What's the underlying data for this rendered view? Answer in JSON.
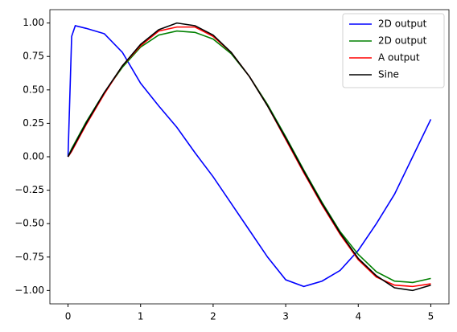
{
  "chart_data": {
    "type": "line",
    "x": [
      0,
      0.05,
      0.1,
      0.25,
      0.5,
      0.75,
      1,
      1.25,
      1.5,
      1.75,
      2,
      2.25,
      2.5,
      2.75,
      3,
      3.25,
      3.5,
      3.75,
      4,
      4.25,
      4.5,
      4.75,
      5
    ],
    "series": [
      {
        "name": "2D output",
        "color": "#0000ff",
        "values": [
          0,
          0.9,
          0.98,
          0.96,
          0.92,
          0.78,
          0.55,
          0.38,
          0.22,
          0.03,
          -0.15,
          -0.35,
          -0.55,
          -0.75,
          -0.92,
          -0.97,
          -0.93,
          -0.85,
          -0.7,
          -0.5,
          -0.28,
          0,
          0.28
        ]
      },
      {
        "name": "2D output",
        "color": "#008000",
        "values": [
          0,
          0.06,
          0.11,
          0.26,
          0.48,
          0.67,
          0.82,
          0.91,
          0.94,
          0.93,
          0.88,
          0.77,
          0.6,
          0.39,
          0.15,
          -0.1,
          -0.34,
          -0.56,
          -0.73,
          -0.86,
          -0.93,
          -0.94,
          -0.91
        ]
      },
      {
        "name": "A output",
        "color": "#ff0000",
        "values": [
          0,
          0.04,
          0.09,
          0.24,
          0.47,
          0.68,
          0.83,
          0.94,
          0.97,
          0.97,
          0.9,
          0.78,
          0.6,
          0.38,
          0.13,
          -0.12,
          -0.36,
          -0.58,
          -0.77,
          -0.9,
          -0.96,
          -0.97,
          -0.95
        ]
      },
      {
        "name": "Sine",
        "color": "#000000",
        "values": [
          0,
          0.05,
          0.1,
          0.25,
          0.48,
          0.68,
          0.84,
          0.95,
          1.0,
          0.98,
          0.91,
          0.78,
          0.6,
          0.38,
          0.14,
          -0.11,
          -0.35,
          -0.57,
          -0.76,
          -0.89,
          -0.98,
          -1.0,
          -0.96
        ]
      }
    ],
    "xlim": [
      -0.25,
      5.25
    ],
    "ylim": [
      -1.1,
      1.1
    ],
    "xticks": [
      0,
      1,
      2,
      3,
      4,
      5
    ],
    "yticks": [
      {
        "value": -1,
        "label": "−1.00"
      },
      {
        "value": -0.75,
        "label": "−0.75"
      },
      {
        "value": -0.5,
        "label": "−0.50"
      },
      {
        "value": -0.25,
        "label": "−0.25"
      },
      {
        "value": 0,
        "label": "0.00"
      },
      {
        "value": 0.25,
        "label": "0.25"
      },
      {
        "value": 0.5,
        "label": "0.50"
      },
      {
        "value": 0.75,
        "label": "0.75"
      },
      {
        "value": 1,
        "label": "1.00"
      }
    ],
    "legend": "upper right"
  }
}
